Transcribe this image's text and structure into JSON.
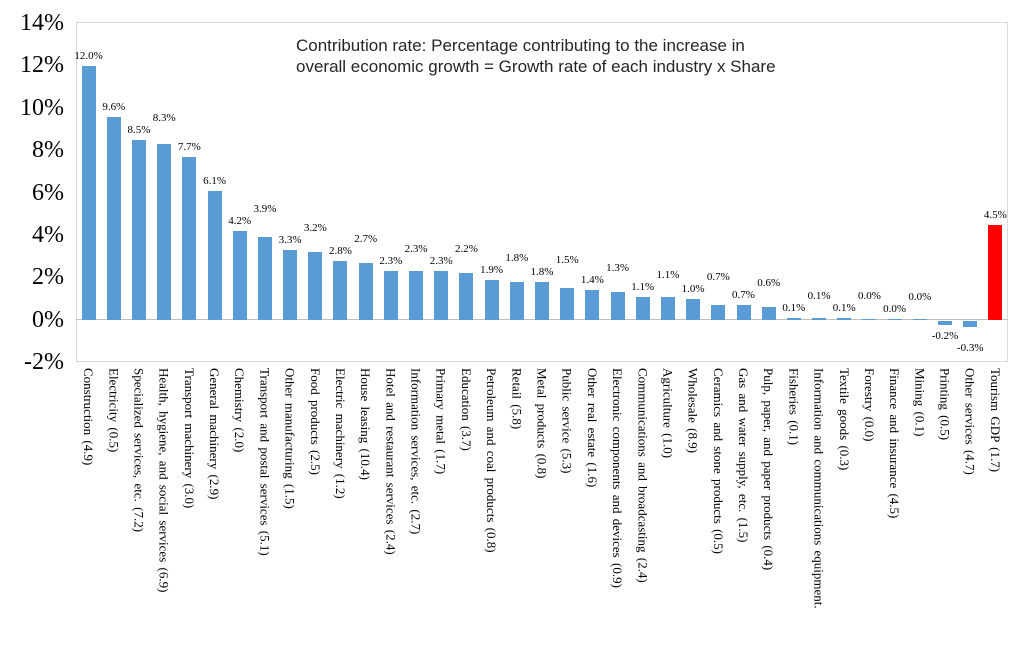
{
  "annotation": {
    "line1": "Contribution rate: Percentage contributing to the increase in",
    "line2": "overall economic growth = Growth rate of each industry x Share"
  },
  "colors": {
    "bar": "#5B9BD5",
    "highlight": "#FF0000",
    "plot_border": "#D9D9D9",
    "axis_line": "#BFBFBF"
  },
  "chart_data": {
    "type": "bar",
    "title": "Contribution rate: Percentage contributing to the increase in overall economic growth = Growth rate of each industry x Share",
    "xlabel": "",
    "ylabel": "",
    "ylim": [
      -2,
      14
    ],
    "y_ticks": [
      "14%",
      "12%",
      "10%",
      "8%",
      "6%",
      "4%",
      "2%",
      "0%",
      "-2%"
    ],
    "grid": false,
    "legend": false,
    "categories": [
      "Construction (4.9)",
      "Electricity (0.5)",
      "Specialized services, etc. (7.2)",
      "Health, hygiene, and social services (6.9)",
      "Transport machinery (3.0)",
      "General machinery (2.9)",
      "Chemistry (2.0)",
      "Transport and postal services (5.1)",
      "Other manufacturing (1.5)",
      "Food products (2.5)",
      "Electric machinery (1.2)",
      "House leasing (10.4)",
      "Hotel and restaurant services (2.4)",
      "Information services, etc. (2.7)",
      "Primary metal (1.7)",
      "Education (3.7)",
      "Petroleum and coal products (0.8)",
      "Retail (5.8)",
      "Metal products (0.8)",
      "Public service (5.3)",
      "Other real estate (1.6)",
      "Electronic components and devices (0.9)",
      "Communications and broadcasting (2.4)",
      "Agriculture (1.0)",
      "Wholesale (8.9)",
      "Ceramics and stone products (0.5)",
      "Gas and water supply, etc. (1.5)",
      "Pulp, paper, and paper products (0.4)",
      "Fisheries (0.1)",
      "Information and communications equipment.",
      "Textile goods (0.3)",
      "Forestry (0.0)",
      "Finance and insurance (4.5)",
      "Mining (0.1)",
      "Printing (0.5)",
      "Other services (4.7)",
      "Tourism GDP (1.7)"
    ],
    "values": [
      12.0,
      9.6,
      8.5,
      8.3,
      7.7,
      6.1,
      4.2,
      3.9,
      3.3,
      3.2,
      2.8,
      2.7,
      2.3,
      2.3,
      2.3,
      2.2,
      1.9,
      1.8,
      1.8,
      1.5,
      1.4,
      1.3,
      1.1,
      1.1,
      1.0,
      0.7,
      0.7,
      0.6,
      0.1,
      0.1,
      0.1,
      0.0,
      0.0,
      0.0,
      -0.2,
      -0.3,
      4.5
    ],
    "data_labels": [
      "12.0%",
      "9.6%",
      "8.5%",
      "8.3%",
      "7.7%",
      "6.1%",
      "4.2%",
      "3.9%",
      "3.3%",
      "3.2%",
      "2.8%",
      "2.7%",
      "2.3%",
      "2.3%",
      "2.3%",
      "2.2%",
      "1.9%",
      "1.8%",
      "1.8%",
      "1.5%",
      "1.4%",
      "1.3%",
      "1.1%",
      "1.1%",
      "1.0%",
      "0.7%",
      "0.7%",
      "0.6%",
      "0.1%",
      "0.1%",
      "0.1%",
      "0.0%",
      "0.0%",
      "0.0%",
      "-0.2%",
      "-0.3%",
      "4.5%"
    ],
    "highlight": {
      "index": 36,
      "category": "Tourism GDP (1.7)",
      "color": "#FF0000"
    }
  }
}
